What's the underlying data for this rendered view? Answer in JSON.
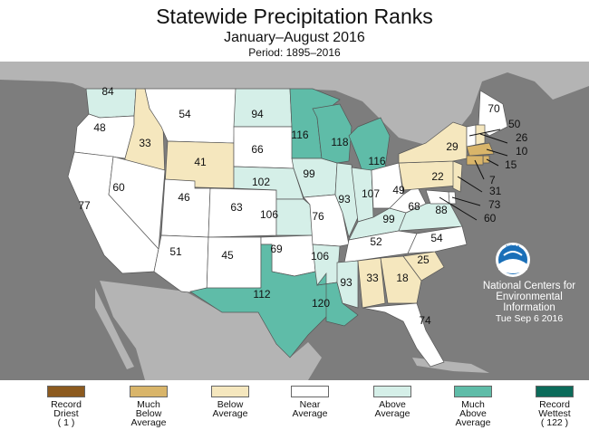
{
  "header": {
    "title": "Statewide Precipitation Ranks",
    "subtitle": "January–August 2016",
    "period": "Period: 1895–2016"
  },
  "credit": {
    "line1": "National Centers for",
    "line2": "Environmental",
    "line3": "Information",
    "date": "Tue Sep  6 2016",
    "logo_text": "NOAA"
  },
  "colors": {
    "record_driest": "#8c5a1f",
    "much_below": "#d9b56a",
    "below": "#f5e7be",
    "near": "#ffffff",
    "above": "#d5efe8",
    "much_above": "#5fbca8",
    "record_wettest": "#0c6b5a",
    "ocean": "#7d7d7d",
    "land_outside": "#b4b4b4"
  },
  "legend": [
    {
      "label": "Record\nDriest\n( 1 )",
      "color": "#8c5a1f"
    },
    {
      "label": "Much\nBelow\nAverage",
      "color": "#d9b56a"
    },
    {
      "label": "Below\nAverage",
      "color": "#f5e7be"
    },
    {
      "label": "Near\nAverage",
      "color": "#ffffff"
    },
    {
      "label": "Above\nAverage",
      "color": "#d5efe8"
    },
    {
      "label": "Much\nAbove\nAverage",
      "color": "#5fbca8"
    },
    {
      "label": "Record\nWettest\n( 122 )",
      "color": "#0c6b5a"
    }
  ],
  "states": {
    "WA": {
      "rank": "84",
      "category": "above"
    },
    "OR": {
      "rank": "48",
      "category": "near"
    },
    "CA": {
      "rank": "77",
      "category": "near"
    },
    "ID": {
      "rank": "33",
      "category": "below"
    },
    "NV": {
      "rank": "60",
      "category": "near"
    },
    "MT": {
      "rank": "54",
      "category": "near"
    },
    "WY": {
      "rank": "41",
      "category": "below"
    },
    "UT": {
      "rank": "46",
      "category": "near"
    },
    "AZ": {
      "rank": "51",
      "category": "near"
    },
    "CO": {
      "rank": "63",
      "category": "near"
    },
    "NM": {
      "rank": "45",
      "category": "near"
    },
    "ND": {
      "rank": "94",
      "category": "above"
    },
    "SD": {
      "rank": "66",
      "category": "near"
    },
    "NE": {
      "rank": "102",
      "category": "above"
    },
    "KS": {
      "rank": "106",
      "category": "above"
    },
    "OK": {
      "rank": "69",
      "category": "near"
    },
    "TX": {
      "rank": "112",
      "category": "much_above"
    },
    "MN": {
      "rank": "116",
      "category": "much_above"
    },
    "IA": {
      "rank": "99",
      "category": "above"
    },
    "MO": {
      "rank": "76",
      "category": "near"
    },
    "AR": {
      "rank": "106",
      "category": "above"
    },
    "LA": {
      "rank": "120",
      "category": "much_above"
    },
    "WI": {
      "rank": "118",
      "category": "much_above"
    },
    "IL": {
      "rank": "93",
      "category": "above"
    },
    "MI": {
      "rank": "116",
      "category": "much_above"
    },
    "IN": {
      "rank": "107",
      "category": "above"
    },
    "OH": {
      "rank": "49",
      "category": "near"
    },
    "KY": {
      "rank": "99",
      "category": "above"
    },
    "TN": {
      "rank": "52",
      "category": "near"
    },
    "MS": {
      "rank": "93",
      "category": "above"
    },
    "AL": {
      "rank": "33",
      "category": "below"
    },
    "GA": {
      "rank": "18",
      "category": "below"
    },
    "FL": {
      "rank": "74",
      "category": "near"
    },
    "SC": {
      "rank": "25",
      "category": "below"
    },
    "NC": {
      "rank": "54",
      "category": "near"
    },
    "VA": {
      "rank": "88",
      "category": "above"
    },
    "WV": {
      "rank": "68",
      "category": "near"
    },
    "PA": {
      "rank": "22",
      "category": "below"
    },
    "NY": {
      "rank": "29",
      "category": "below"
    },
    "ME": {
      "rank": "70",
      "category": "near"
    },
    "VT": {
      "rank": "50",
      "category": "near"
    },
    "NH": {
      "rank": "26",
      "category": "below"
    },
    "MA": {
      "rank": "10",
      "category": "much_below"
    },
    "RI": {
      "rank": "15",
      "category": "much_below"
    },
    "CT": {
      "rank": "7",
      "category": "much_below"
    },
    "NJ": {
      "rank": "31",
      "category": "below"
    },
    "DE": {
      "rank": "73",
      "category": "near"
    },
    "MD": {
      "rank": "60",
      "category": "near"
    }
  }
}
